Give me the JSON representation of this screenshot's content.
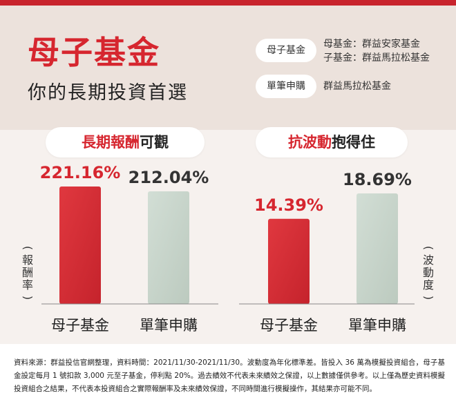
{
  "header": {
    "title": "母子基金",
    "subtitle": "你的長期投資首選"
  },
  "products": {
    "mother_child": {
      "label": "母子基金",
      "mother_fund": "母基金：群益安家基金",
      "child_fund": "子基金：群益馬拉松基金"
    },
    "single": {
      "label": "單筆申購",
      "fund": "群益馬拉松基金"
    }
  },
  "sections": {
    "left_title_part1": "長期報酬",
    "left_title_part2": "可觀",
    "right_title_part1": "抗波動",
    "right_title_part2": "抱得住"
  },
  "colors": {
    "red_bar": "#d42e36",
    "green_bar": "#c7d5cb",
    "red_text": "#d6262f"
  },
  "chart_data": [
    {
      "type": "bar",
      "title": "長期報酬可觀",
      "categories": [
        "母子基金",
        "單筆申購"
      ],
      "values": [
        221.16,
        212.04
      ],
      "value_labels": [
        "221.16%",
        "212.04%"
      ],
      "ylabel": "(報酬率)",
      "unit": "%"
    },
    {
      "type": "bar",
      "title": "抗波動抱得住",
      "categories": [
        "母子基金",
        "單筆申購"
      ],
      "values": [
        14.39,
        18.69
      ],
      "value_labels": [
        "14.39%",
        "18.69%"
      ],
      "ylabel": "(波動度)",
      "unit": "%"
    }
  ],
  "footnote": "資料來源：群益投信官網整理，資料時間：2021/11/30-2021/11/30。波動度為年化標準差。皆投入 36 萬為模擬投資組合，母子基金設定每月 1 號扣款 3,000 元至子基金，停利點 20%。過去績效不代表未來績效之保證，以上數據僅供參考。以上僅為歷史資料模擬投資組合之結果，不代表本投資組合之實際報酬率及未來績效保證，不同時間進行模擬操作，其結果亦可能不同。"
}
